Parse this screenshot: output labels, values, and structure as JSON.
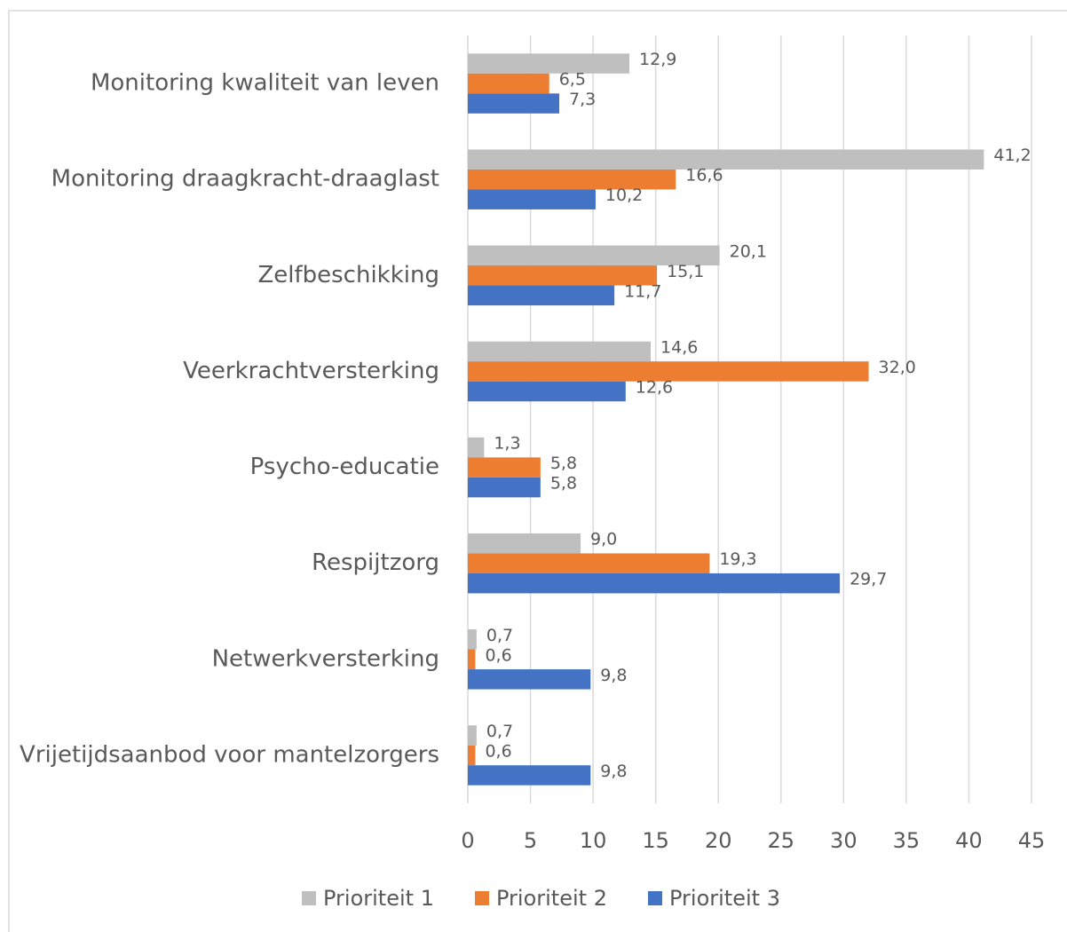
{
  "chart_data": {
    "type": "hbar",
    "categories": [
      "Monitoring kwaliteit van leven",
      "Monitoring draagkracht-draaglast",
      "Zelfbeschikking",
      "Veerkrachtversterking",
      "Psycho-educatie",
      "Respijtzorg",
      "Netwerkversterking",
      "Vrijetijdsaanbod voor mantelzorgers"
    ],
    "series": [
      {
        "name": "Prioriteit 1",
        "color": "#bfbfbf",
        "values": [
          12.9,
          41.2,
          20.1,
          14.6,
          1.3,
          9.0,
          0.7,
          0.7
        ],
        "value_labels": [
          "12,9",
          "41,2",
          "20,1",
          "14,6",
          "1,3",
          "9,0",
          "0,7",
          "0,7"
        ]
      },
      {
        "name": "Prioriteit 2",
        "color": "#ed7d31",
        "values": [
          6.5,
          16.6,
          15.1,
          32.0,
          5.8,
          19.3,
          0.6,
          0.6
        ],
        "value_labels": [
          "6,5",
          "16,6",
          "15,1",
          "32,0",
          "5,8",
          "19,3",
          "0,6",
          "0,6"
        ]
      },
      {
        "name": "Prioriteit 3",
        "color": "#4472c4",
        "values": [
          7.3,
          10.2,
          11.7,
          12.6,
          5.8,
          29.7,
          9.8,
          9.8
        ],
        "value_labels": [
          "7,3",
          "10,2",
          "11,7",
          "12,6",
          "5,8",
          "29,7",
          "9,8",
          "9,8"
        ]
      }
    ],
    "xlim": [
      0,
      45
    ],
    "xticks": [
      0,
      5,
      10,
      15,
      20,
      25,
      30,
      35,
      40,
      45
    ],
    "grid": true,
    "legend": "bottom"
  }
}
